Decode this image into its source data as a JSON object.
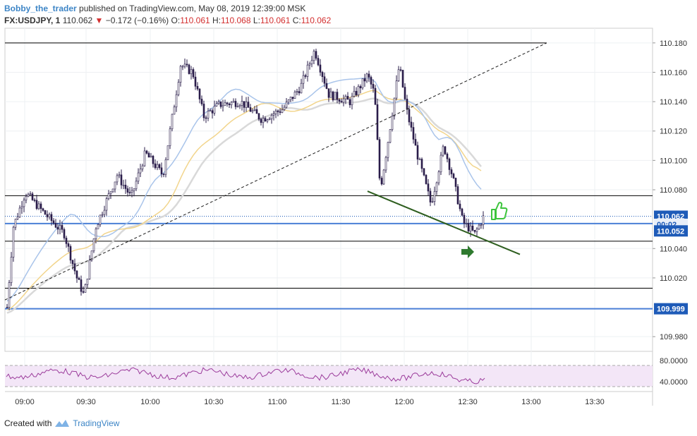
{
  "header": {
    "author": "Bobby_the_trader",
    "published": "published on TradingView.com, May 08, 2019 12:39:00 MSK",
    "symbol": "FX:USDJPY, 1",
    "last": "110.062",
    "change": "−0.172 (−0.16%)",
    "open_label": "O:",
    "open": "110.061",
    "high_label": "H:",
    "high": "110.068",
    "low_label": "L:",
    "low": "110.061",
    "close_label": "C:",
    "close": "110.062"
  },
  "footer": {
    "created_with": "Created with",
    "brand": "TradingView"
  },
  "colors": {
    "candle_up": "#ffffff",
    "candle_down": "#2a1d4a",
    "wick": "#2a1d4a",
    "ma_fast": "#a9c4ea",
    "ma_mid": "#f2d58c",
    "ma_slow": "#d9d9d9",
    "hline_blue": "#4a7fd6",
    "hline_black": "#000000",
    "trend_green": "#2e5e1f",
    "rsi": "#9b3b9b",
    "rsi_band": "#f3e6f7",
    "last_price_badge": "#1e5bb8",
    "thumb": "#3cc43c",
    "arrow": "#2f7a2f"
  },
  "chart_data": {
    "type": "candlestick",
    "ylim": [
      109.97,
      110.19
    ],
    "y_ticks": [
      "110.180",
      "110.160",
      "110.140",
      "110.120",
      "110.100",
      "110.080",
      "110.040",
      "110.020",
      "109.980"
    ],
    "x_ticks": [
      "09:00",
      "09:30",
      "10:00",
      "10:30",
      "11:00",
      "11:30",
      "12:00",
      "12:30",
      "13:00",
      "13:30"
    ],
    "price_labels": {
      "last": "110.062",
      "timer": "00:02",
      "level_a": "110.052",
      "level_b": "109.999"
    },
    "horizontal_lines": [
      {
        "price": 110.18,
        "color": "black"
      },
      {
        "price": 110.076,
        "color": "black"
      },
      {
        "price": 110.057,
        "color": "blue"
      },
      {
        "price": 110.045,
        "color": "black"
      },
      {
        "price": 110.013,
        "color": "black"
      },
      {
        "price": 109.999,
        "color": "blue"
      }
    ],
    "rsi": {
      "levels": [
        "80.0000",
        "40.0000"
      ]
    }
  }
}
